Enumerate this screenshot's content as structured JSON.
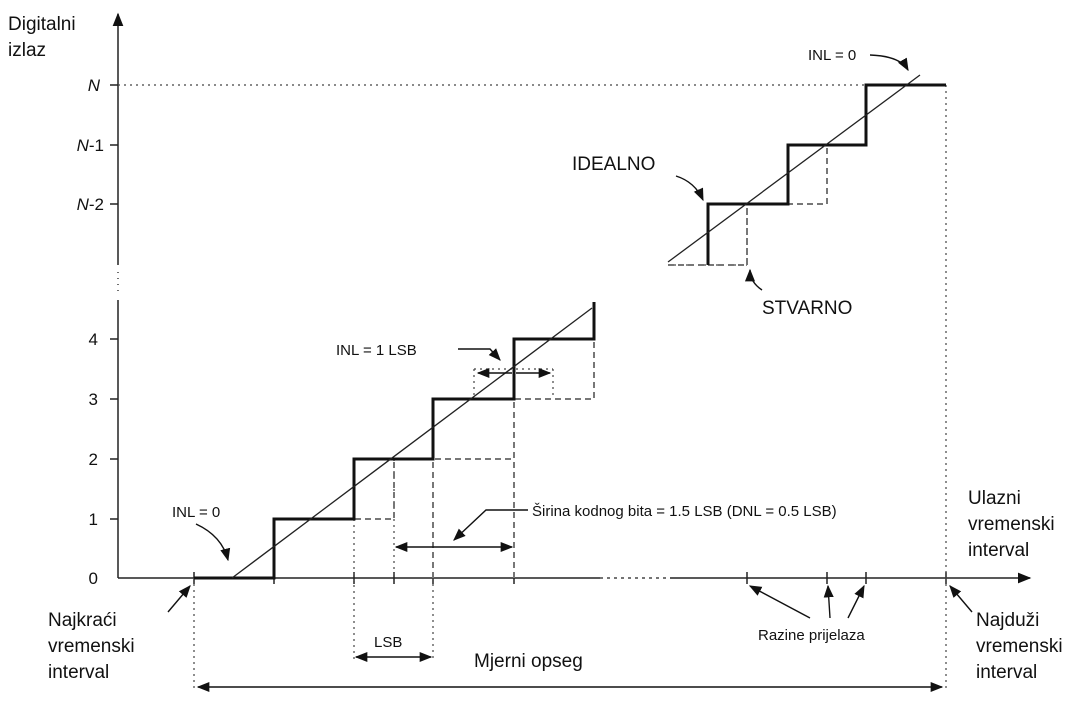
{
  "axes": {
    "y_title": [
      "Digitalni",
      "izlaz"
    ],
    "x_title": [
      "Ulazni",
      "vremenski",
      "interval"
    ],
    "y_ticks": [
      "0",
      "1",
      "2",
      "3",
      "4"
    ],
    "y_ticks_top": [
      {
        "italic": "N",
        "rest": "-2"
      },
      {
        "italic": "N",
        "rest": "-1"
      },
      {
        "italic": "N",
        "rest": ""
      }
    ]
  },
  "labels": {
    "idealno": "IDEALNO",
    "stvarno": "STVARNO",
    "inl_zero_top": "INL = 0",
    "inl_zero_bottom": "INL = 0",
    "inl_one": "INL = 1 LSB",
    "sirina": "Širina kodnog bita = 1.5 LSB (DNL = 0.5 LSB)",
    "lsb": "LSB",
    "razine": "Razine prijelaza",
    "mjerni": "Mjerni opseg",
    "najkraci": [
      "Najkraći",
      "vremenski",
      "interval"
    ],
    "najduzi": [
      "Najduži",
      "vremenski",
      "interval"
    ]
  }
}
